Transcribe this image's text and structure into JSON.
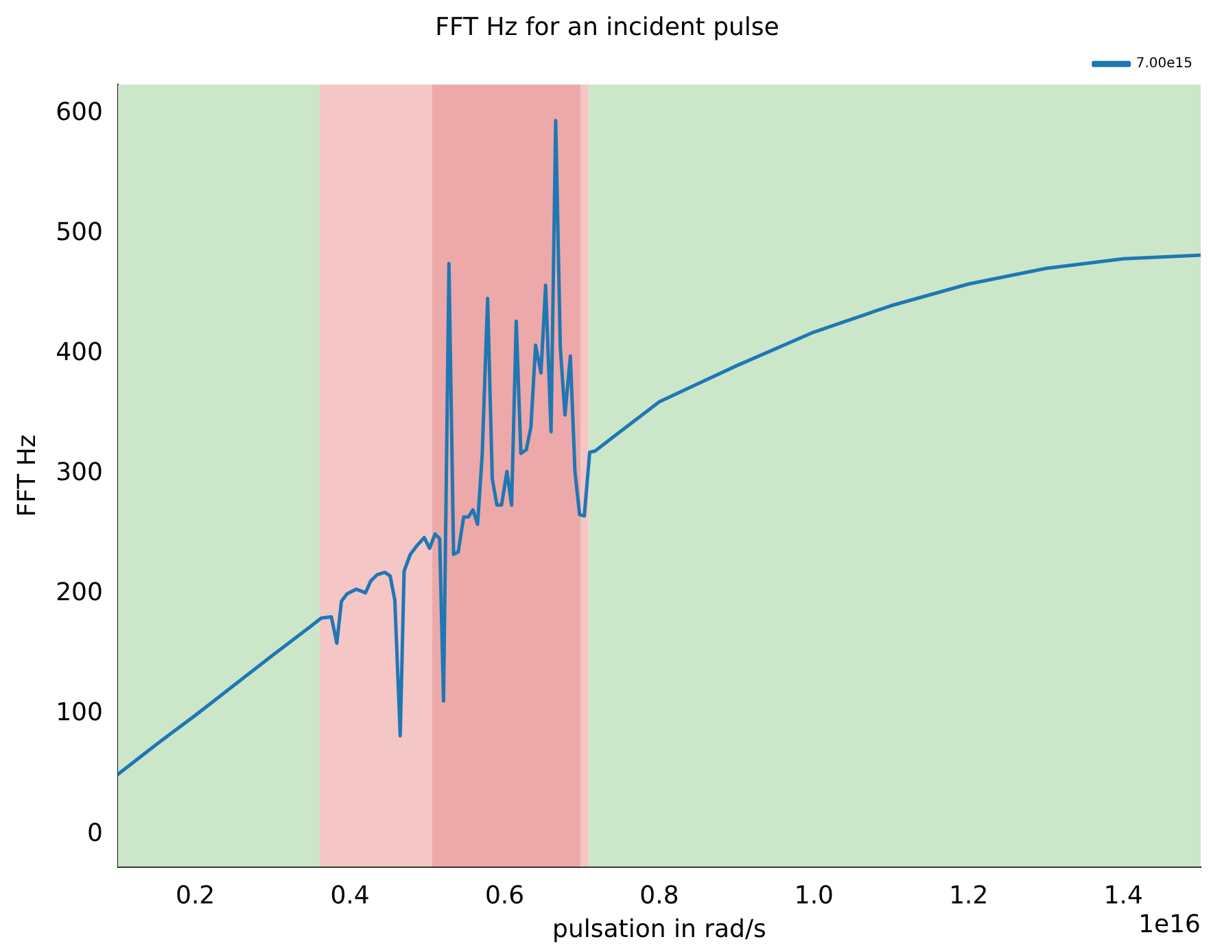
{
  "chart_data": {
    "type": "line",
    "title": "FFT Hz for an incident pulse",
    "xlabel": "pulsation in rad/s",
    "ylabel": "FFT Hz",
    "annotations": [
      "1e16"
    ],
    "x": [
      0.1,
      0.15,
      0.2,
      0.25,
      0.3,
      0.345,
      0.363,
      0.376,
      0.383,
      0.389,
      0.396,
      0.408,
      0.42,
      0.427,
      0.435,
      0.445,
      0.452,
      0.458,
      0.465,
      0.47,
      0.478,
      0.485,
      0.496,
      0.503,
      0.51,
      0.516,
      0.521,
      0.528,
      0.534,
      0.54,
      0.547,
      0.553,
      0.559,
      0.565,
      0.571,
      0.578,
      0.584,
      0.59,
      0.596,
      0.603,
      0.609,
      0.615,
      0.621,
      0.628,
      0.634,
      0.64,
      0.647,
      0.653,
      0.66,
      0.666,
      0.672,
      0.678,
      0.685,
      0.691,
      0.697,
      0.703,
      0.71,
      0.717,
      0.739,
      0.8,
      0.9,
      1.0,
      1.1,
      1.2,
      1.3,
      1.4,
      1.5
    ],
    "series": [
      {
        "name": "7.00e15",
        "color": "#1f77b4",
        "values": [
          50,
          75,
          99,
          124,
          149,
          171,
          180,
          181,
          159,
          194,
          200,
          204,
          201,
          211,
          216,
          218,
          215,
          195,
          82,
          219,
          233,
          239,
          247,
          238,
          250,
          246,
          111,
          475,
          233,
          235,
          264,
          264,
          270,
          258,
          316,
          446,
          296,
          274,
          274,
          302,
          274,
          427,
          317,
          320,
          339,
          407,
          384,
          457,
          335,
          594,
          405,
          349,
          398,
          301,
          266,
          265,
          318,
          319,
          330,
          360,
          390,
          418,
          440,
          458,
          471,
          479,
          482
        ]
      }
    ],
    "xlim": [
      0.1,
      1.5
    ],
    "xticks": [
      0.2,
      0.4,
      0.6,
      0.8,
      {
        "value": 1,
        "label": "1.0"
      },
      1.2,
      1.4
    ],
    "ylim": [
      -27,
      624
    ],
    "yticks": [
      0,
      100,
      200,
      300,
      400,
      500,
      600
    ],
    "bands": [
      {
        "axis": "x",
        "from": 0.1,
        "to": 0.361,
        "color": "#cce6ca"
      },
      {
        "axis": "x",
        "from": 0.361,
        "to": 0.506,
        "color": "#f4c6c6"
      },
      {
        "axis": "x",
        "from": 0.506,
        "to": 0.698,
        "color": "#eda9a9"
      },
      {
        "axis": "x",
        "from": 0.698,
        "to": 0.709,
        "color": "#f4c6c6"
      },
      {
        "axis": "x",
        "from": 0.709,
        "to": 1.5,
        "color": "#cce6ca"
      }
    ],
    "grid": false,
    "legend": "top right",
    "line_style": "solid",
    "marker": "none"
  }
}
